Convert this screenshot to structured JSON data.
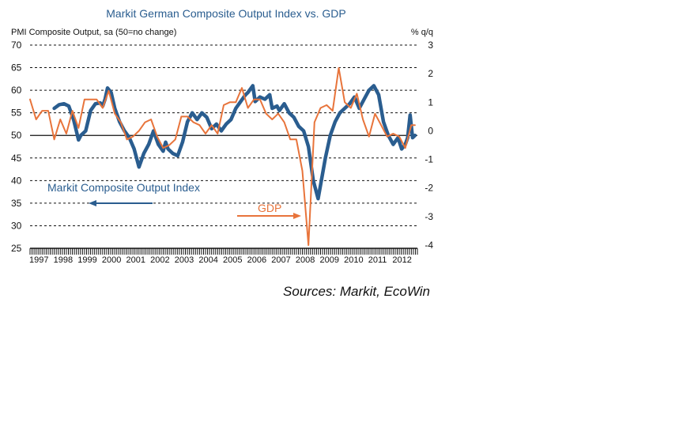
{
  "chart_data": {
    "type": "line",
    "title": "Markit German Composite Output Index vs. GDP",
    "left_axis_label": "PMI Composite Output, sa (50=no change)",
    "right_axis_label": "% q/q",
    "left_ylim": [
      25,
      70
    ],
    "right_ylim": [
      -4,
      3
    ],
    "left_ticks": [
      "70",
      "65",
      "60",
      "55",
      "50",
      "45",
      "40",
      "35",
      "30",
      "25"
    ],
    "right_ticks": [
      "3",
      "2",
      "1",
      "0",
      "-1",
      "-2",
      "-3",
      "-4"
    ],
    "x_labels": [
      "1997",
      "1998",
      "1999",
      "2000",
      "2001",
      "2002",
      "2003",
      "2004",
      "2005",
      "2006",
      "2007",
      "2008",
      "2009",
      "2010",
      "2011",
      "2012"
    ],
    "xlim": [
      1997.0,
      2013.0
    ],
    "grid": true,
    "reference_line": {
      "axis": "left",
      "value": 50
    },
    "series": [
      {
        "name": "Markit Composite Output Index",
        "axis": "left",
        "color": "#2a5d8f",
        "x": [
          1998.0,
          1998.2,
          1998.4,
          1998.6,
          1998.8,
          1999.0,
          1999.1,
          1999.3,
          1999.5,
          1999.7,
          1999.9,
          2000.0,
          2000.1,
          2000.2,
          2000.35,
          2000.5,
          2000.7,
          2000.9,
          2001.1,
          2001.3,
          2001.5,
          2001.7,
          2001.9,
          2002.1,
          2002.3,
          2002.5,
          2002.6,
          2002.7,
          2002.9,
          2003.1,
          2003.3,
          2003.5,
          2003.7,
          2003.9,
          2004.1,
          2004.3,
          2004.5,
          2004.7,
          2004.9,
          2005.1,
          2005.3,
          2005.5,
          2005.7,
          2005.9,
          2006.0,
          2006.2,
          2006.3,
          2006.5,
          2006.7,
          2006.9,
          2007.0,
          2007.2,
          2007.3,
          2007.5,
          2007.7,
          2007.9,
          2008.1,
          2008.3,
          2008.5,
          2008.7,
          2008.9,
          2009.0,
          2009.2,
          2009.4,
          2009.6,
          2009.8,
          2010.0,
          2010.2,
          2010.4,
          2010.6,
          2010.8,
          2011.0,
          2011.2,
          2011.4,
          2011.6,
          2011.8,
          2012.0,
          2012.2,
          2012.35,
          2012.5,
          2012.6,
          2012.7,
          2012.8,
          2012.9
        ],
        "values": [
          56.0,
          56.8,
          57.0,
          56.5,
          53.5,
          49.0,
          50.0,
          51.0,
          55.5,
          57.0,
          57.2,
          56.5,
          58.0,
          60.5,
          59.5,
          56.0,
          53.0,
          51.0,
          49.5,
          47.0,
          43.0,
          46.0,
          48.0,
          51.0,
          48.0,
          46.5,
          48.5,
          47.0,
          46.0,
          45.5,
          48.5,
          53.0,
          55.0,
          53.5,
          55.0,
          54.0,
          51.5,
          52.5,
          51.0,
          52.5,
          53.5,
          56.0,
          57.5,
          59.0,
          59.5,
          61.0,
          57.5,
          58.5,
          58.0,
          59.0,
          56.0,
          56.5,
          55.5,
          57.0,
          55.0,
          54.0,
          52.0,
          51.0,
          47.5,
          40.0,
          36.0,
          39.0,
          45.0,
          50.0,
          53.0,
          55.0,
          56.0,
          57.0,
          58.5,
          56.0,
          58.0,
          60.0,
          61.0,
          59.0,
          53.0,
          50.0,
          48.0,
          49.5,
          47.0,
          48.0,
          49.5,
          54.5,
          49.5,
          50.0
        ]
      },
      {
        "name": "GDP",
        "axis": "right",
        "color": "#e8743b",
        "x": [
          1997.0,
          1997.25,
          1997.5,
          1997.75,
          1998.0,
          1998.25,
          1998.5,
          1998.75,
          1999.0,
          1999.25,
          1999.5,
          1999.75,
          2000.0,
          2000.25,
          2000.5,
          2000.75,
          2001.0,
          2001.25,
          2001.5,
          2001.75,
          2002.0,
          2002.25,
          2002.5,
          2002.75,
          2003.0,
          2003.25,
          2003.5,
          2003.75,
          2004.0,
          2004.25,
          2004.5,
          2004.75,
          2005.0,
          2005.25,
          2005.5,
          2005.75,
          2006.0,
          2006.25,
          2006.5,
          2006.75,
          2007.0,
          2007.25,
          2007.5,
          2007.75,
          2008.0,
          2008.25,
          2008.5,
          2008.75,
          2009.0,
          2009.25,
          2009.5,
          2009.75,
          2010.0,
          2010.25,
          2010.5,
          2010.75,
          2011.0,
          2011.25,
          2011.5,
          2011.75,
          2012.0,
          2012.25,
          2012.5,
          2012.75,
          2012.9
        ],
        "values": [
          1.1,
          0.4,
          0.7,
          0.7,
          -0.3,
          0.4,
          -0.1,
          0.7,
          0.1,
          1.1,
          1.1,
          1.1,
          0.8,
          1.4,
          0.6,
          0.3,
          -0.3,
          -0.2,
          0.0,
          0.3,
          0.4,
          -0.2,
          -0.6,
          -0.5,
          -0.3,
          0.5,
          0.5,
          0.3,
          0.2,
          -0.1,
          0.2,
          -0.1,
          0.9,
          1.0,
          1.0,
          1.5,
          0.8,
          1.1,
          1.1,
          0.6,
          0.4,
          0.6,
          0.3,
          -0.3,
          -0.3,
          -1.4,
          -4.0,
          0.3,
          0.8,
          0.9,
          0.7,
          2.2,
          1.0,
          0.8,
          1.3,
          0.4,
          -0.2,
          0.6,
          0.2,
          -0.2,
          -0.1,
          -0.2,
          -0.6,
          0.2,
          0.2
        ]
      }
    ],
    "annotations": {
      "pmi_label": "Markit Composite Output Index",
      "gdp_label": "GDP",
      "source": "Sources: Markit, EcoWin"
    }
  }
}
